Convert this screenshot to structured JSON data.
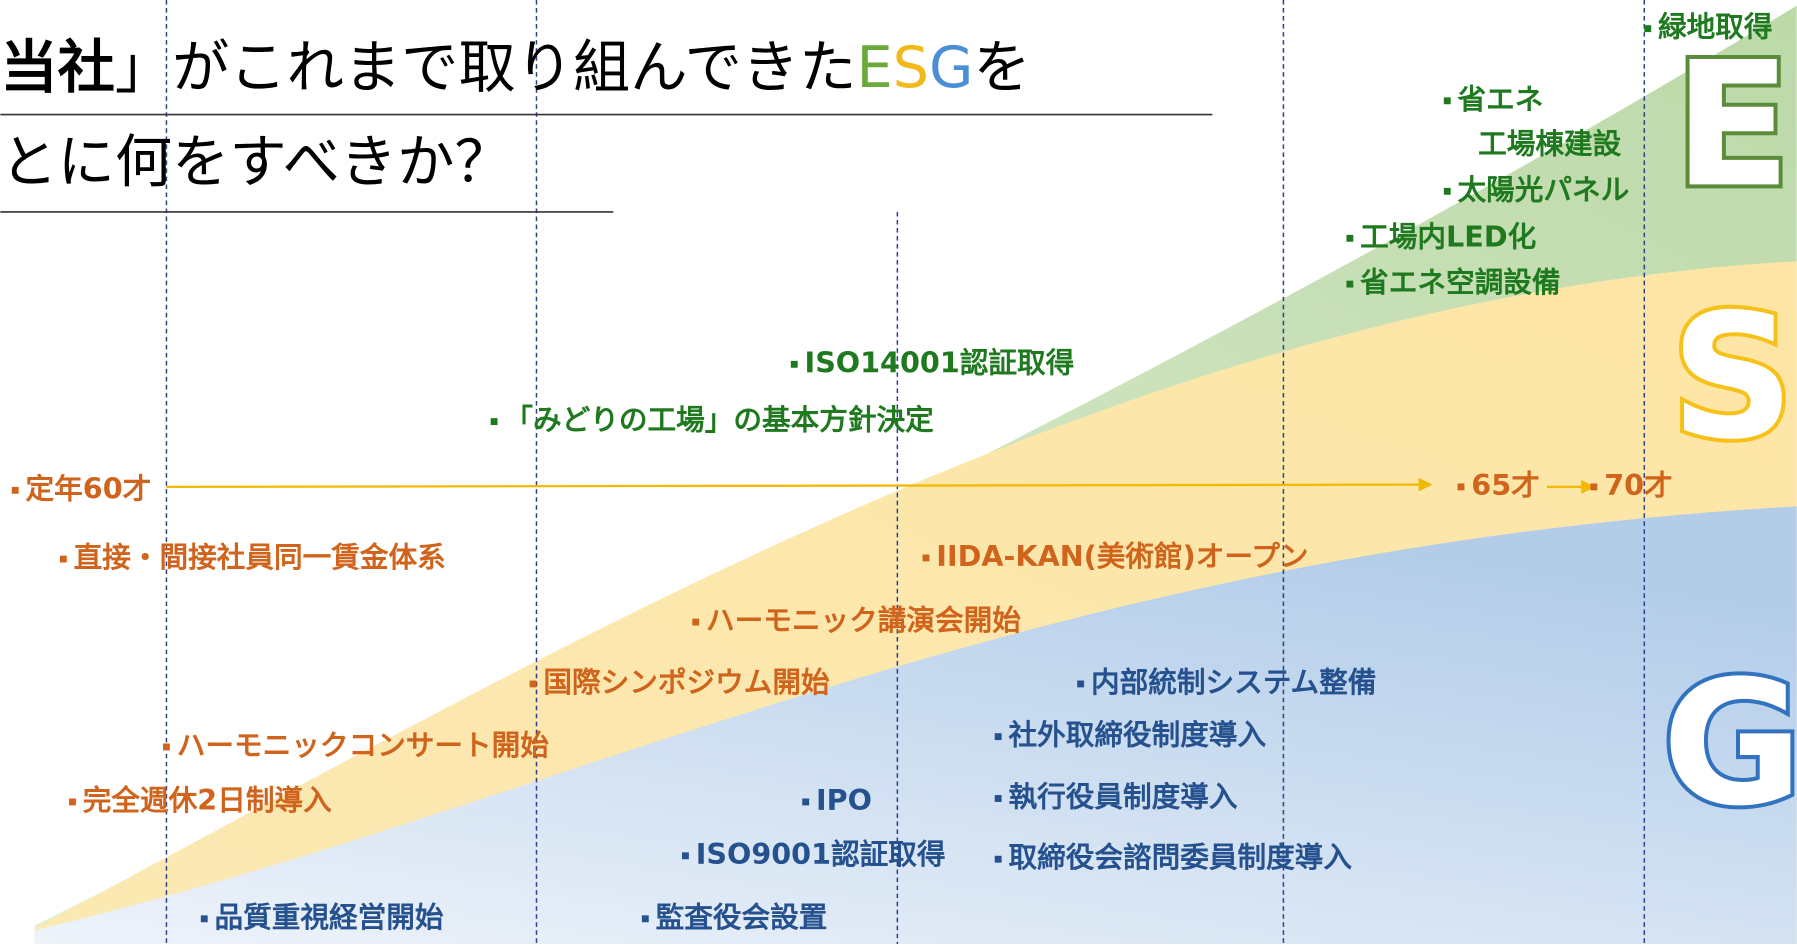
{
  "title": {
    "line1": {
      "lead": "当社",
      "rest": "」がこれまで取り組んできた",
      "esg": [
        "E",
        "S",
        "G"
      ],
      "end": "を"
    },
    "line2": "とに何をすべきか？"
  },
  "pillars": [
    {
      "letter": "E",
      "items": [
        "緑地取得",
        "省エネ",
        "工場棟建設",
        "太陽光パネル",
        "工場内LED化",
        "省エネ空調設備",
        "ISO14001認証取得",
        "「みどりの工場」の基本方針決定"
      ]
    },
    {
      "letter": "S",
      "items": [
        "定年60才",
        "65才",
        "70才",
        "直接・間接社員同一賃金体系",
        "IIDA-KAN(美術館)オープン",
        "ハーモニック講演会開始",
        "国際シンポジウム開始",
        "ハーモニックコンサート開始",
        "完全週休2日制導入"
      ]
    },
    {
      "letter": "G",
      "items": [
        "内部統制システム整備",
        "社外取締役制度導入",
        "執行役員制度導入",
        "IPO",
        "ISO9001認証取得",
        "取締役会諮問委員制度導入",
        "品質重視経営開始",
        "監査役会設置"
      ]
    }
  ]
}
